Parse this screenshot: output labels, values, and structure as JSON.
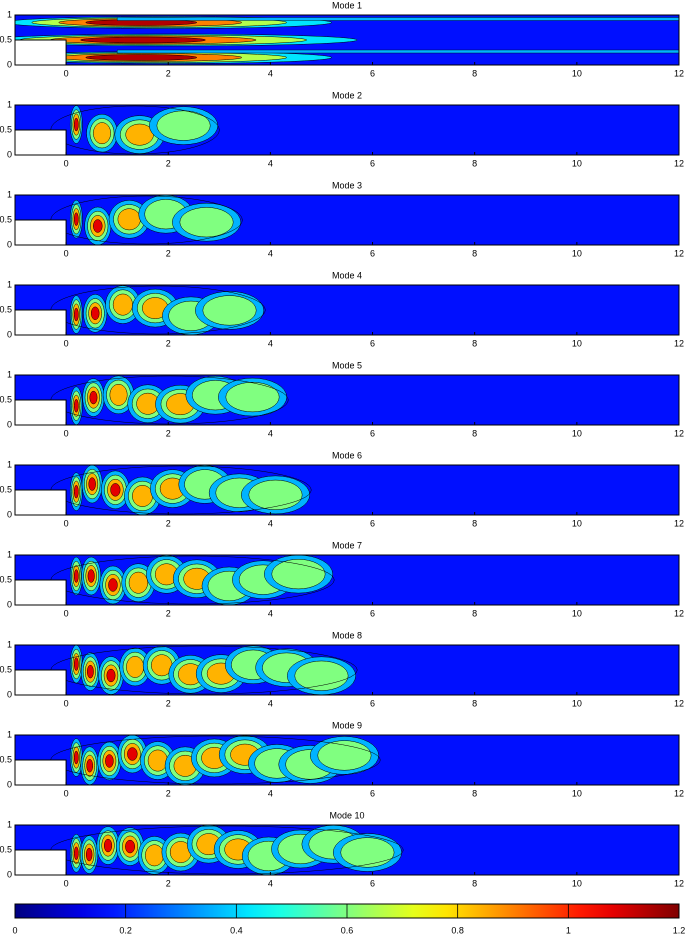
{
  "chart_data": [
    {
      "type": "contour",
      "title": "Mode  1",
      "xlim": [
        -1,
        12
      ],
      "ylim": [
        0,
        1
      ],
      "xticks": [
        0,
        2,
        4,
        6,
        8,
        10,
        12
      ],
      "yticks": [
        0,
        0.5,
        1
      ]
    },
    {
      "type": "contour",
      "title": "Mode  2",
      "xlim": [
        -1,
        12
      ],
      "ylim": [
        0,
        1
      ],
      "xticks": [
        0,
        2,
        4,
        6,
        8,
        10,
        12
      ],
      "yticks": [
        0,
        0.5,
        1
      ]
    },
    {
      "type": "contour",
      "title": "Mode  3",
      "xlim": [
        -1,
        12
      ],
      "ylim": [
        0,
        1
      ],
      "xticks": [
        0,
        2,
        4,
        6,
        8,
        10,
        12
      ],
      "yticks": [
        0,
        0.5,
        1
      ]
    },
    {
      "type": "contour",
      "title": "Mode  4",
      "xlim": [
        -1,
        12
      ],
      "ylim": [
        0,
        1
      ],
      "xticks": [
        0,
        2,
        4,
        6,
        8,
        10,
        12
      ],
      "yticks": [
        0,
        0.5,
        1
      ]
    },
    {
      "type": "contour",
      "title": "Mode  5",
      "xlim": [
        -1,
        12
      ],
      "ylim": [
        0,
        1
      ],
      "xticks": [
        0,
        2,
        4,
        6,
        8,
        10,
        12
      ],
      "yticks": [
        0,
        0.5,
        1
      ]
    },
    {
      "type": "contour",
      "title": "Mode  6",
      "xlim": [
        -1,
        12
      ],
      "ylim": [
        0,
        1
      ],
      "xticks": [
        0,
        2,
        4,
        6,
        8,
        10,
        12
      ],
      "yticks": [
        0,
        0.5,
        1
      ]
    },
    {
      "type": "contour",
      "title": "Mode  7",
      "xlim": [
        -1,
        12
      ],
      "ylim": [
        0,
        1
      ],
      "xticks": [
        0,
        2,
        4,
        6,
        8,
        10,
        12
      ],
      "yticks": [
        0,
        0.5,
        1
      ]
    },
    {
      "type": "contour",
      "title": "Mode  8",
      "xlim": [
        -1,
        12
      ],
      "ylim": [
        0,
        1
      ],
      "xticks": [
        0,
        2,
        4,
        6,
        8,
        10,
        12
      ],
      "yticks": [
        0,
        0.5,
        1
      ]
    },
    {
      "type": "contour",
      "title": "Mode  9",
      "xlim": [
        -1,
        12
      ],
      "ylim": [
        0,
        1
      ],
      "xticks": [
        0,
        2,
        4,
        6,
        8,
        10,
        12
      ],
      "yticks": [
        0,
        0.5,
        1
      ]
    },
    {
      "type": "contour",
      "title": "Mode  10",
      "xlim": [
        -1,
        12
      ],
      "ylim": [
        0,
        1
      ],
      "xticks": [
        0,
        2,
        4,
        6,
        8,
        10,
        12
      ],
      "yticks": [
        0,
        0.5,
        1
      ]
    }
  ],
  "colorbar": {
    "colormap": "jet",
    "lim": [
      0,
      1.2
    ],
    "ticks": [
      0,
      0.2,
      0.4,
      0.6,
      0.8,
      1,
      1.2
    ]
  }
}
